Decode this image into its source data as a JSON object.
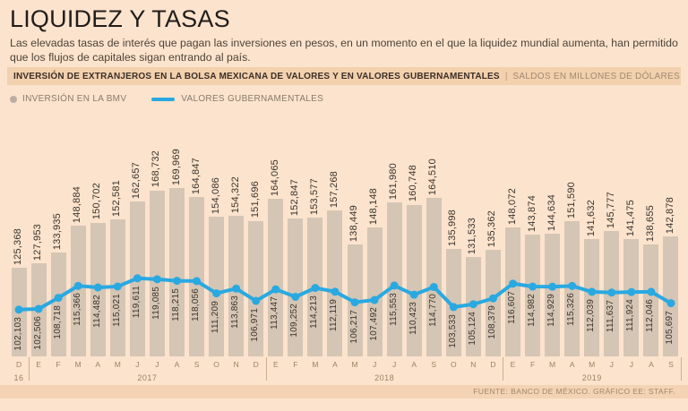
{
  "header": {
    "title": "LIQUIDEZ Y TASAS",
    "subtitle": "Las elevadas tasas de interés que pagan las inversiones en pesos, en un momento en el que la liquidez mundial aumenta, han permitido que los flujos de capitales sigan entrando al país.",
    "band_title": "INVERSIÓN DE EXTRANJEROS EN LA BOLSA MEXICANA DE VALORES Y EN VALORES GUBERNAMENTALES",
    "band_sep": "|",
    "band_units": "SALDOS EN MILLONES DE DÓLARES"
  },
  "legend": {
    "bmv_label": "INVERSIÓN EN LA BMV",
    "gub_label": "VALORES GUBERNAMENTALES"
  },
  "footer": {
    "source": "FUENTE: BANCO DE MÉXICO.  GRÁFICO EE: STAFF."
  },
  "colors": {
    "background": "#fce3cd",
    "band": "#f3d0ae",
    "bar": "#d5c5b4",
    "line": "#29a9e1",
    "label_text": "#3a332c",
    "axis_text": "#9d8063"
  },
  "chart_data": {
    "type": "bar",
    "title": "INVERSIÓN DE EXTRANJEROS EN LA BOLSA MEXICANA DE VALORES Y EN VALORES GUBERNAMENTALES",
    "units": "SALDOS EN MILLONES DE DÓLARES",
    "categories": [
      "D",
      "E",
      "F",
      "M",
      "A",
      "M",
      "J",
      "J",
      "A",
      "S",
      "O",
      "N",
      "D",
      "E",
      "F",
      "M",
      "A",
      "M",
      "J",
      "J",
      "A",
      "S",
      "O",
      "N",
      "D",
      "E",
      "F",
      "M",
      "A",
      "M",
      "J",
      "J",
      "A",
      "S"
    ],
    "year_groups": [
      {
        "label": "16",
        "start": 0,
        "end": 0
      },
      {
        "label": "2017",
        "start": 1,
        "end": 12
      },
      {
        "label": "2018",
        "start": 13,
        "end": 24
      },
      {
        "label": "2019",
        "start": 25,
        "end": 33
      }
    ],
    "series": [
      {
        "name": "INVERSIÓN EN LA BMV",
        "type": "bar",
        "values": [
          125368,
          127953,
          133935,
          148884,
          150702,
          152581,
          162657,
          168732,
          169969,
          164847,
          154086,
          154322,
          151696,
          164065,
          152847,
          153577,
          157268,
          138449,
          148148,
          161980,
          160748,
          164510,
          135998,
          131533,
          135362,
          148072,
          143874,
          144634,
          151590,
          141632,
          145777,
          141475,
          138655,
          142878
        ],
        "labels": [
          "125,368",
          "127,953",
          "133,935",
          "148,884",
          "150,702",
          "152,581",
          "162,657",
          "168,732",
          "169,969",
          "164,847",
          "154,086",
          "154,322",
          "151,696",
          "164,065",
          "152,847",
          "153,577",
          "157,268",
          "138,449",
          "148,148",
          "161,980",
          "160,748",
          "164,510",
          "135,998",
          "131,533",
          "135,362",
          "148,072",
          "143,874",
          "144,634",
          "151,590",
          "141,632",
          "145,777",
          "141,475",
          "138,655",
          "142,878"
        ]
      },
      {
        "name": "VALORES GUBERNAMENTALES",
        "type": "line",
        "values": [
          102103,
          102506,
          108718,
          115366,
          114482,
          115021,
          119611,
          119085,
          118215,
          118056,
          111209,
          113863,
          106971,
          113447,
          109252,
          114213,
          112119,
          106217,
          107492,
          115553,
          110423,
          114770,
          103533,
          105124,
          108379,
          116607,
          114982,
          114929,
          115326,
          112039,
          111637,
          111924,
          112046,
          105697
        ],
        "labels": [
          "102,103",
          "102,506",
          "108,718",
          "115,366",
          "114,482",
          "115,021",
          "119,611",
          "119,085",
          "118,215",
          "118,056",
          "111,209",
          "113,863",
          "106,971",
          "113,447",
          "109,252",
          "114,213",
          "112,119",
          "106,217",
          "107,492",
          "115,553",
          "110,423",
          "114,770",
          "103,533",
          "105,124",
          "108,379",
          "116,607",
          "114,982",
          "114,929",
          "115,326",
          "112,039",
          "111,637",
          "111,924",
          "112,046",
          "105,697"
        ]
      }
    ],
    "value_labels_shown": true,
    "grid": false,
    "legend_position": "top-left",
    "ylim_implied": [
      76000,
      170000
    ]
  }
}
